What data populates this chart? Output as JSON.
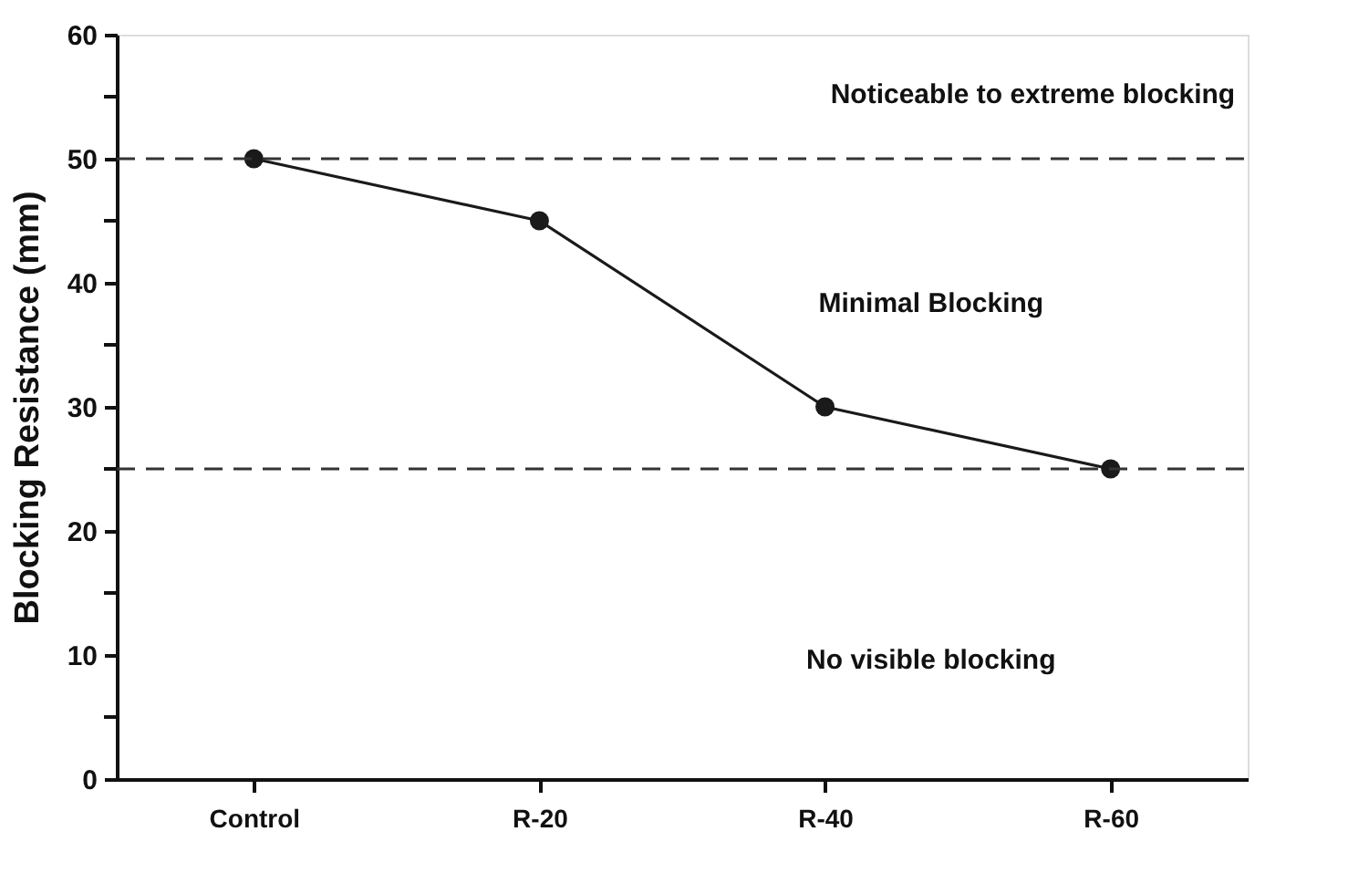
{
  "chart_data": {
    "type": "line",
    "ylabel": "Blocking Resistance (mm)",
    "categories": [
      "Control",
      "R-20",
      "R-40",
      "R-60"
    ],
    "series": [
      {
        "color": "#1a1a1a",
        "values": [
          50,
          45,
          30,
          25
        ]
      }
    ],
    "ylim": [
      0,
      60
    ],
    "yticks": [
      0,
      {
        "value": 5,
        "label": null
      },
      10,
      {
        "value": 15,
        "label": null
      },
      20,
      {
        "value": 25,
        "label": null
      },
      30,
      {
        "value": 35,
        "label": null
      },
      40,
      {
        "value": 45,
        "label": null
      },
      50,
      {
        "value": 55,
        "label": null
      },
      60
    ],
    "ref_lines": [
      {
        "axis": "y",
        "value": 50,
        "color": "#333333",
        "line_style": "dashed"
      },
      {
        "axis": "y",
        "value": 25,
        "color": "#333333",
        "line_style": "dashed"
      }
    ],
    "annotations": [
      "Noticeable to extreme blocking",
      "Minimal Blocking",
      "No visible blocking"
    ],
    "marker": "circle",
    "line_style": "solid",
    "grid": false
  }
}
